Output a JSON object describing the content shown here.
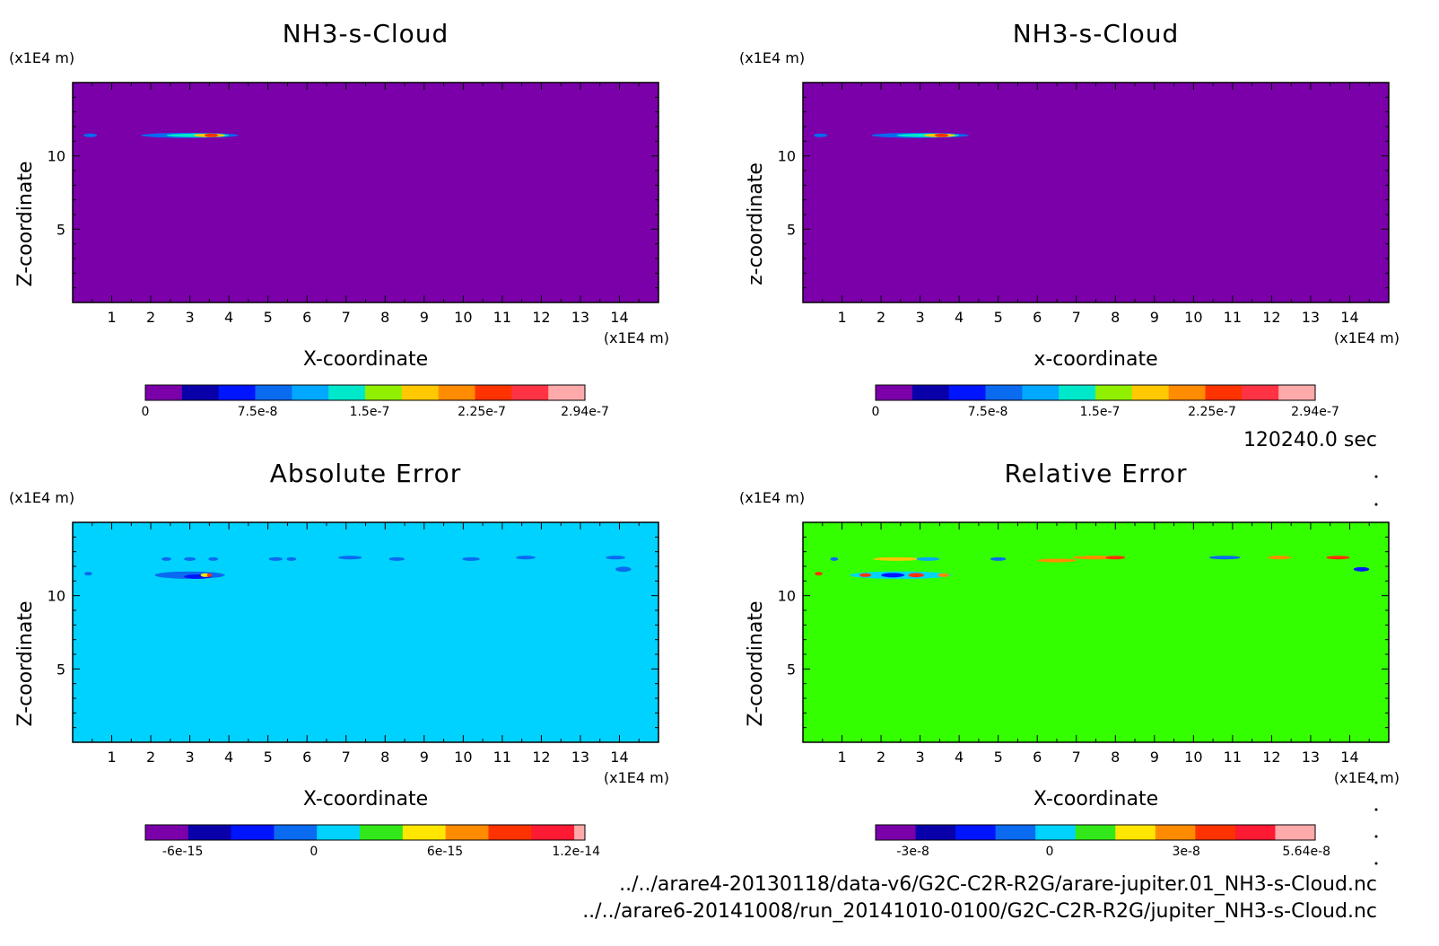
{
  "footer": {
    "time": "120240.0 sec",
    "file1": "../../arare4-20130118/data-v6/G2C-C2R-R2G/arare-jupiter.01_NH3-s-Cloud.nc",
    "file2": "../../arare6-20141008/run_20141010-0100/G2C-C2R-R2G/jupiter_NH3-s-Cloud.nc"
  },
  "chart_data": [
    {
      "type": "heatmap",
      "title": "NH3-s-Cloud",
      "xlabel": "X-coordinate",
      "ylabel": "Z-coordinate",
      "x_unit": "(x1E4 m)",
      "y_unit": "(x1E4 m)",
      "xlim": [
        0,
        15
      ],
      "ylim": [
        0,
        15
      ],
      "xticks": [
        "1",
        "2",
        "3",
        "4",
        "5",
        "6",
        "7",
        "8",
        "9",
        "10",
        "11",
        "12",
        "13",
        "14"
      ],
      "yticks": [
        "5",
        "10"
      ],
      "background_color": "#7B00AA",
      "colorbar": {
        "colors": [
          "#7B00AA",
          "#0A00AA",
          "#0015FF",
          "#0A6AF0",
          "#00A8FF",
          "#00E8CC",
          "#90F000",
          "#FFC800",
          "#FF8C00",
          "#FF3300",
          "#FF3344",
          "#FFAAAA"
        ],
        "labels": [
          "0",
          "7.5e-8",
          "1.5e-7",
          "2.25e-7",
          "2.94e-7"
        ],
        "label_values": [
          0,
          7.5e-08,
          1.5e-07,
          2.25e-07,
          2.94e-07
        ]
      },
      "features": [
        {
          "x": 0.45,
          "z": 11.4,
          "w": 0.35,
          "h": 0.18,
          "color": "#0A6AF0"
        },
        {
          "x": 3.0,
          "z": 11.4,
          "w": 2.5,
          "h": 0.35,
          "color": "#0A6AF0"
        },
        {
          "x": 3.2,
          "z": 11.4,
          "w": 1.6,
          "h": 0.22,
          "color": "#00E8CC"
        },
        {
          "x": 3.5,
          "z": 11.4,
          "w": 0.8,
          "h": 0.16,
          "color": "#FFC800"
        },
        {
          "x": 3.55,
          "z": 11.4,
          "w": 0.35,
          "h": 0.12,
          "color": "#FF3300"
        }
      ]
    },
    {
      "type": "heatmap",
      "title": "NH3-s-Cloud",
      "xlabel": "x-coordinate",
      "ylabel": "z-coordinate",
      "x_unit": "(x1E4 m)",
      "y_unit": "(x1E4 m)",
      "xlim": [
        0,
        15
      ],
      "ylim": [
        0,
        15
      ],
      "xticks": [
        "1",
        "2",
        "3",
        "4",
        "5",
        "6",
        "7",
        "8",
        "9",
        "10",
        "11",
        "12",
        "13",
        "14"
      ],
      "yticks": [
        "5",
        "10"
      ],
      "background_color": "#7B00AA",
      "colorbar": {
        "colors": [
          "#7B00AA",
          "#0A00AA",
          "#0015FF",
          "#0A6AF0",
          "#00A8FF",
          "#00E8CC",
          "#90F000",
          "#FFC800",
          "#FF8C00",
          "#FF3300",
          "#FF3344",
          "#FFAAAA"
        ],
        "labels": [
          "0",
          "7.5e-8",
          "1.5e-7",
          "2.25e-7",
          "2.94e-7"
        ],
        "label_values": [
          0,
          7.5e-08,
          1.5e-07,
          2.25e-07,
          2.94e-07
        ]
      },
      "features": [
        {
          "x": 0.45,
          "z": 11.4,
          "w": 0.35,
          "h": 0.18,
          "color": "#0A6AF0"
        },
        {
          "x": 3.0,
          "z": 11.4,
          "w": 2.5,
          "h": 0.35,
          "color": "#0A6AF0"
        },
        {
          "x": 3.2,
          "z": 11.4,
          "w": 1.6,
          "h": 0.22,
          "color": "#00E8CC"
        },
        {
          "x": 3.5,
          "z": 11.4,
          "w": 0.8,
          "h": 0.16,
          "color": "#FFC800"
        },
        {
          "x": 3.55,
          "z": 11.4,
          "w": 0.35,
          "h": 0.12,
          "color": "#FF3300"
        }
      ]
    },
    {
      "type": "heatmap",
      "title": "Absolute Error",
      "xlabel": "X-coordinate",
      "ylabel": "Z-coordinate",
      "x_unit": "(x1E4 m)",
      "y_unit": "(x1E4 m)",
      "xlim": [
        0,
        15
      ],
      "ylim": [
        0,
        15
      ],
      "xticks": [
        "1",
        "2",
        "3",
        "4",
        "5",
        "6",
        "7",
        "8",
        "9",
        "10",
        "11",
        "12",
        "13",
        "14"
      ],
      "yticks": [
        "5",
        "10"
      ],
      "background_color": "#00D2FF",
      "colorbar": {
        "colors": [
          "#7B00AA",
          "#0A00AA",
          "#0015FF",
          "#0A6AF0",
          "#00D2FF",
          "#33E81A",
          "#FFE600",
          "#FF8C00",
          "#FF3300",
          "#FF1A33",
          "#FFAAAA"
        ],
        "widths": [
          1,
          1,
          1,
          1,
          1,
          1,
          1,
          1,
          1,
          1,
          0.25
        ],
        "labels": [
          "-6e-15",
          "0",
          "6e-15",
          "1.2e-14"
        ],
        "label_values": [
          -6e-15,
          0,
          6e-15,
          1.2e-14
        ]
      },
      "features": [
        {
          "x": 3.0,
          "z": 12.5,
          "w": 0.3,
          "h": 0.2,
          "color": "#0A6AF0"
        },
        {
          "x": 3.6,
          "z": 12.5,
          "w": 0.25,
          "h": 0.2,
          "color": "#0A6AF0"
        },
        {
          "x": 2.4,
          "z": 12.5,
          "w": 0.25,
          "h": 0.15,
          "color": "#0A6AF0"
        },
        {
          "x": 5.2,
          "z": 12.5,
          "w": 0.35,
          "h": 0.15,
          "color": "#0A6AF0"
        },
        {
          "x": 5.6,
          "z": 12.5,
          "w": 0.25,
          "h": 0.15,
          "color": "#0A6AF0"
        },
        {
          "x": 7.1,
          "z": 12.6,
          "w": 0.6,
          "h": 0.25,
          "color": "#0A6AF0"
        },
        {
          "x": 8.3,
          "z": 12.5,
          "w": 0.4,
          "h": 0.15,
          "color": "#0A6AF0"
        },
        {
          "x": 10.2,
          "z": 12.5,
          "w": 0.45,
          "h": 0.2,
          "color": "#0A6AF0"
        },
        {
          "x": 11.6,
          "z": 12.6,
          "w": 0.5,
          "h": 0.25,
          "color": "#0A6AF0"
        },
        {
          "x": 13.9,
          "z": 12.6,
          "w": 0.5,
          "h": 0.25,
          "color": "#0A6AF0"
        },
        {
          "x": 14.1,
          "z": 11.8,
          "w": 0.4,
          "h": 0.35,
          "color": "#0A6AF0"
        },
        {
          "x": 3.0,
          "z": 11.4,
          "w": 1.8,
          "h": 0.5,
          "color": "#0A6AF0"
        },
        {
          "x": 3.2,
          "z": 11.3,
          "w": 0.7,
          "h": 0.3,
          "color": "#0015FF"
        },
        {
          "x": 3.4,
          "z": 11.4,
          "w": 0.25,
          "h": 0.2,
          "color": "#FFE600"
        },
        {
          "x": 3.5,
          "z": 11.4,
          "w": 0.12,
          "h": 0.12,
          "color": "#FF3300"
        },
        {
          "x": 0.4,
          "z": 11.5,
          "w": 0.2,
          "h": 0.15,
          "color": "#0A6AF0"
        }
      ]
    },
    {
      "type": "heatmap",
      "title": "Relative Error",
      "xlabel": "X-coordinate",
      "ylabel": "Z-coordinate",
      "x_unit": "(x1E4 m)",
      "y_unit": "(x1E4 m)",
      "xlim": [
        0,
        15
      ],
      "ylim": [
        0,
        15
      ],
      "xticks": [
        "1",
        "2",
        "3",
        "4",
        "5",
        "6",
        "7",
        "8",
        "9",
        "10",
        "11",
        "12",
        "13",
        "14"
      ],
      "yticks": [
        "5",
        "10"
      ],
      "background_color": "#33FF00",
      "colorbar": {
        "colors": [
          "#7B00AA",
          "#0A00AA",
          "#0015FF",
          "#0A6AF0",
          "#00D2FF",
          "#33E81A",
          "#FFE600",
          "#FF8C00",
          "#FF3300",
          "#FF1A33",
          "#FFAAAA"
        ],
        "labels": [
          "-3e-8",
          "0",
          "3e-8",
          "5.64e-8"
        ],
        "label_values": [
          -3e-08,
          0,
          3e-08,
          5.64e-08
        ]
      },
      "features": [
        {
          "x": 2.4,
          "z": 12.5,
          "w": 1.2,
          "h": 0.2,
          "color": "#FFC800"
        },
        {
          "x": 3.2,
          "z": 12.5,
          "w": 0.6,
          "h": 0.15,
          "color": "#00A8FF"
        },
        {
          "x": 5.0,
          "z": 12.5,
          "w": 0.4,
          "h": 0.15,
          "color": "#0A6AF0"
        },
        {
          "x": 6.5,
          "z": 12.4,
          "w": 1.0,
          "h": 0.2,
          "color": "#FF8C00"
        },
        {
          "x": 7.5,
          "z": 12.6,
          "w": 1.2,
          "h": 0.25,
          "color": "#FF8C00"
        },
        {
          "x": 8.0,
          "z": 12.6,
          "w": 0.5,
          "h": 0.15,
          "color": "#FF3300"
        },
        {
          "x": 10.8,
          "z": 12.6,
          "w": 0.8,
          "h": 0.2,
          "color": "#0A6AF0"
        },
        {
          "x": 12.2,
          "z": 12.6,
          "w": 0.6,
          "h": 0.2,
          "color": "#FF8C00"
        },
        {
          "x": 13.7,
          "z": 12.6,
          "w": 0.6,
          "h": 0.2,
          "color": "#FF3300"
        },
        {
          "x": 14.3,
          "z": 11.8,
          "w": 0.4,
          "h": 0.3,
          "color": "#0015FF"
        },
        {
          "x": 2.5,
          "z": 11.4,
          "w": 2.6,
          "h": 0.5,
          "color": "#00D2FF"
        },
        {
          "x": 2.3,
          "z": 11.4,
          "w": 0.6,
          "h": 0.3,
          "color": "#0015FF"
        },
        {
          "x": 2.9,
          "z": 11.4,
          "w": 0.4,
          "h": 0.3,
          "color": "#FF3300"
        },
        {
          "x": 1.6,
          "z": 11.4,
          "w": 0.3,
          "h": 0.2,
          "color": "#FF3300"
        },
        {
          "x": 3.6,
          "z": 11.4,
          "w": 0.3,
          "h": 0.2,
          "color": "#FF8C00"
        },
        {
          "x": 0.4,
          "z": 11.5,
          "w": 0.2,
          "h": 0.15,
          "color": "#FF3300"
        },
        {
          "x": 0.8,
          "z": 12.5,
          "w": 0.2,
          "h": 0.12,
          "color": "#0A6AF0"
        }
      ]
    }
  ]
}
